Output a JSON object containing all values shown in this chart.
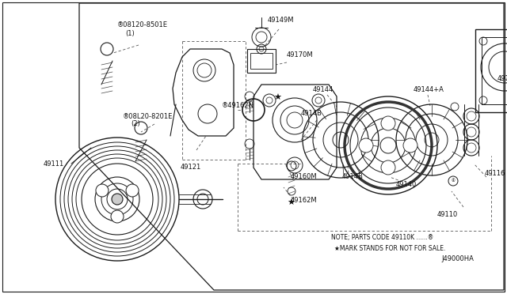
{
  "bg_color": "#ffffff",
  "line_color": "#1a1a1a",
  "text_color": "#111111",
  "title_bottom_right": "J49000HA",
  "note_line1": "NOTE; PARTS CODE 49110K ......®",
  "note_line2": "★MARK STANDS FOR NOT FOR SALE."
}
